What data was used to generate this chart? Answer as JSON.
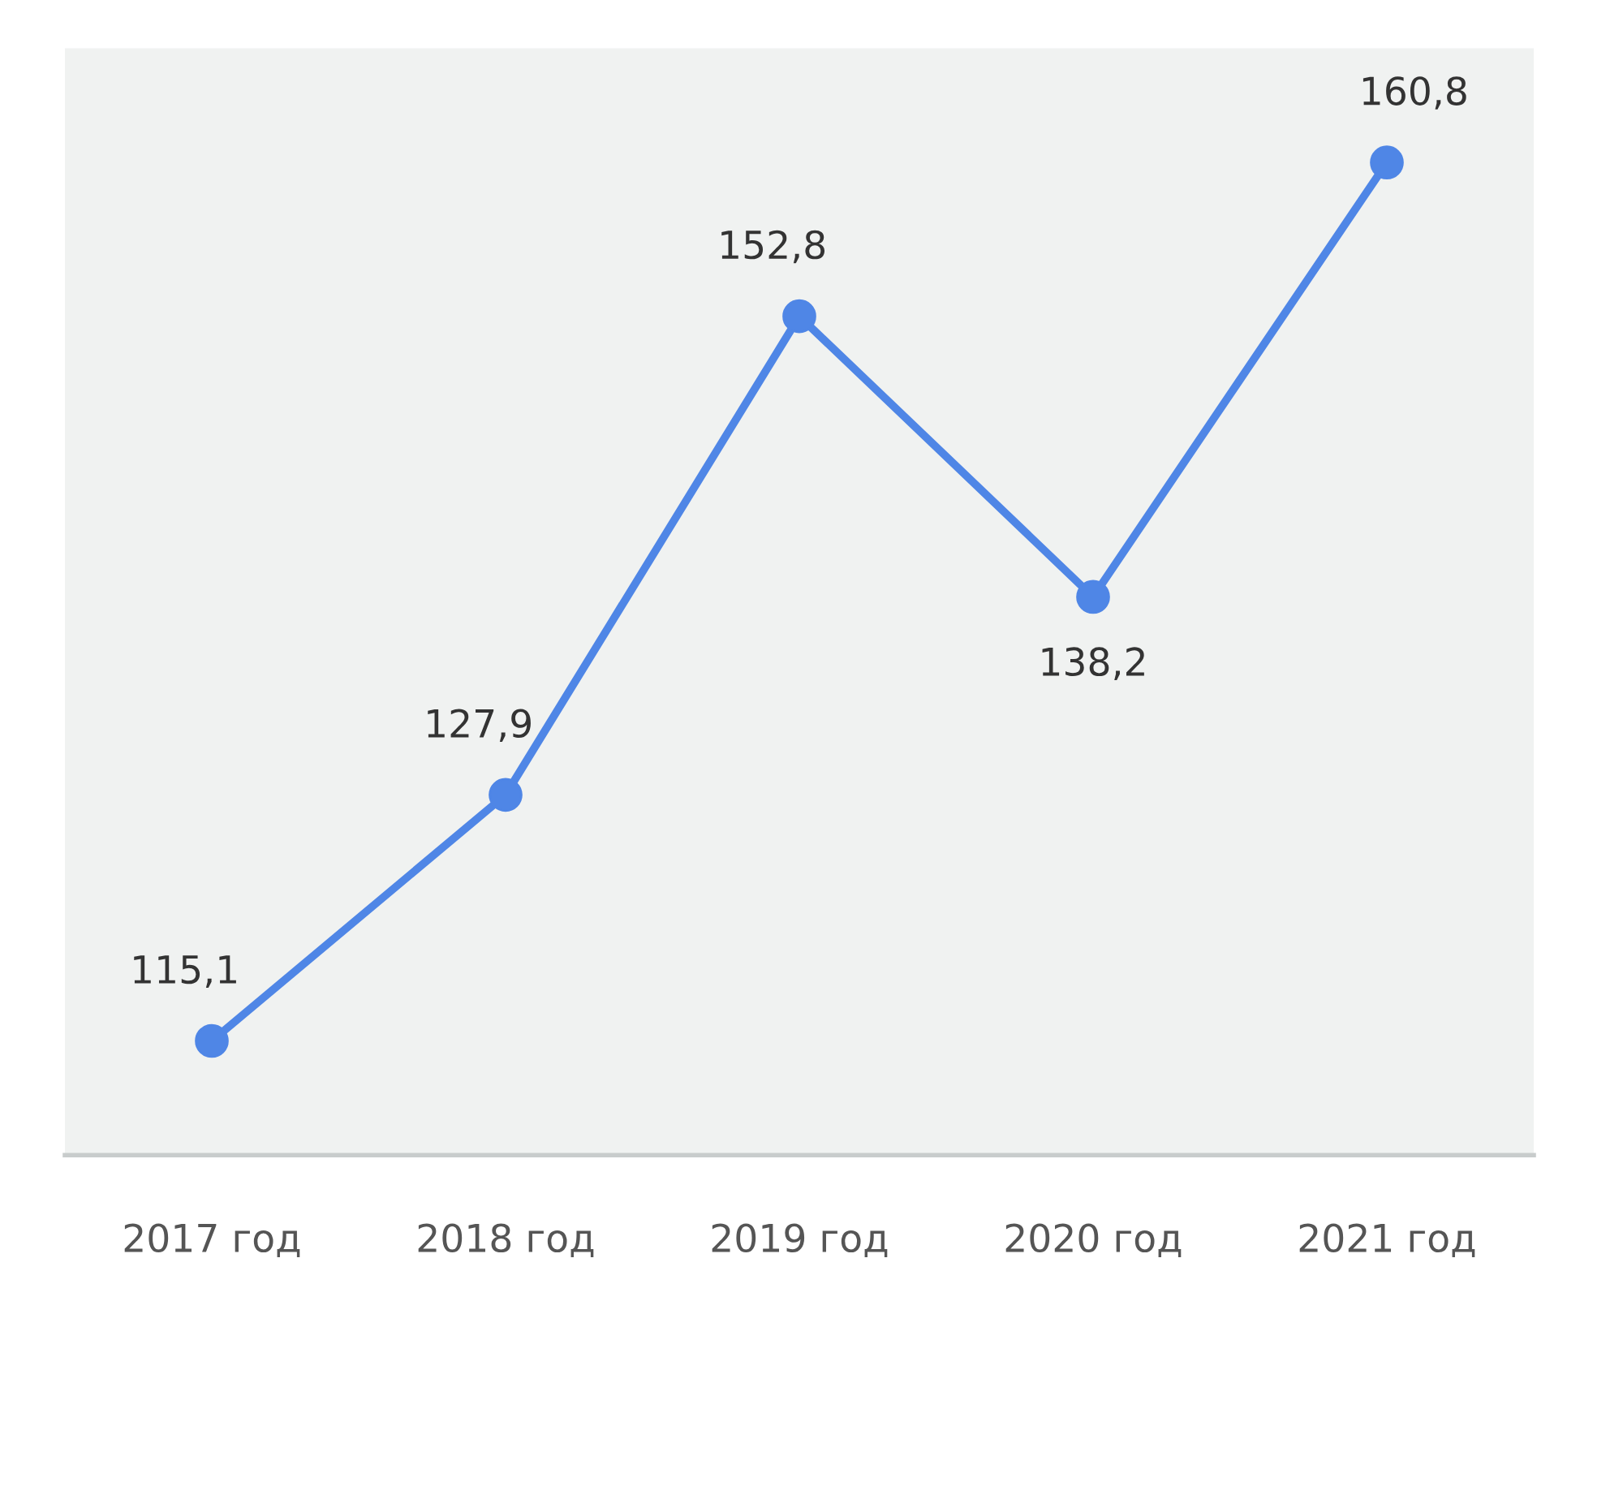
{
  "chart_data": {
    "type": "line",
    "categories": [
      "2017 год",
      "2018 год",
      "2019 год",
      "2020 год",
      "2021 год"
    ],
    "series": [
      {
        "color": "#4f86e6",
        "values": [
          115.1,
          127.9,
          152.8,
          138.2,
          160.8
        ],
        "value_labels": [
          "115,1",
          "127,9",
          "152,8",
          "138,2",
          "160,8"
        ]
      }
    ],
    "marker": "circle",
    "line_style": "solid"
  }
}
